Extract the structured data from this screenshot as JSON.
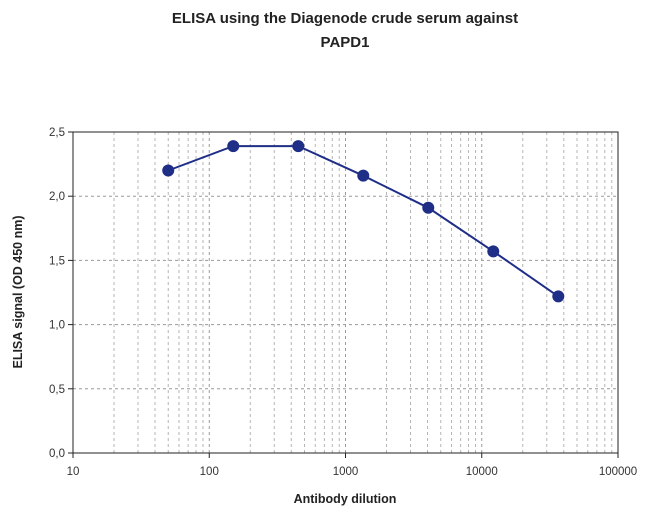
{
  "chart_data": {
    "type": "line",
    "title_lines": [
      "ELISA using the Diagenode crude serum against",
      "PAPD1"
    ],
    "xlabel": "Antibody dilution",
    "ylabel": "ELISA signal (OD 450 nm)",
    "x_scale": "log",
    "xlim": [
      10,
      100000
    ],
    "ylim": [
      0,
      2.5
    ],
    "x_ticks": [
      10,
      100,
      1000,
      10000,
      100000
    ],
    "x_tick_labels": [
      "10",
      "100",
      "1000",
      "10000",
      "100000"
    ],
    "y_ticks": [
      0,
      0.5,
      1.0,
      1.5,
      2.0,
      2.5
    ],
    "y_tick_labels": [
      "0,0",
      "0,5",
      "1,0",
      "1,5",
      "2,0",
      "2,5"
    ],
    "grid": true,
    "legend": "none",
    "series": [
      {
        "x": [
          50,
          150,
          450,
          1350,
          4050,
          12150,
          36450
        ],
        "y": [
          2.2,
          2.39,
          2.39,
          2.16,
          1.91,
          1.57,
          1.22
        ],
        "color": "#1f2e87"
      }
    ]
  }
}
